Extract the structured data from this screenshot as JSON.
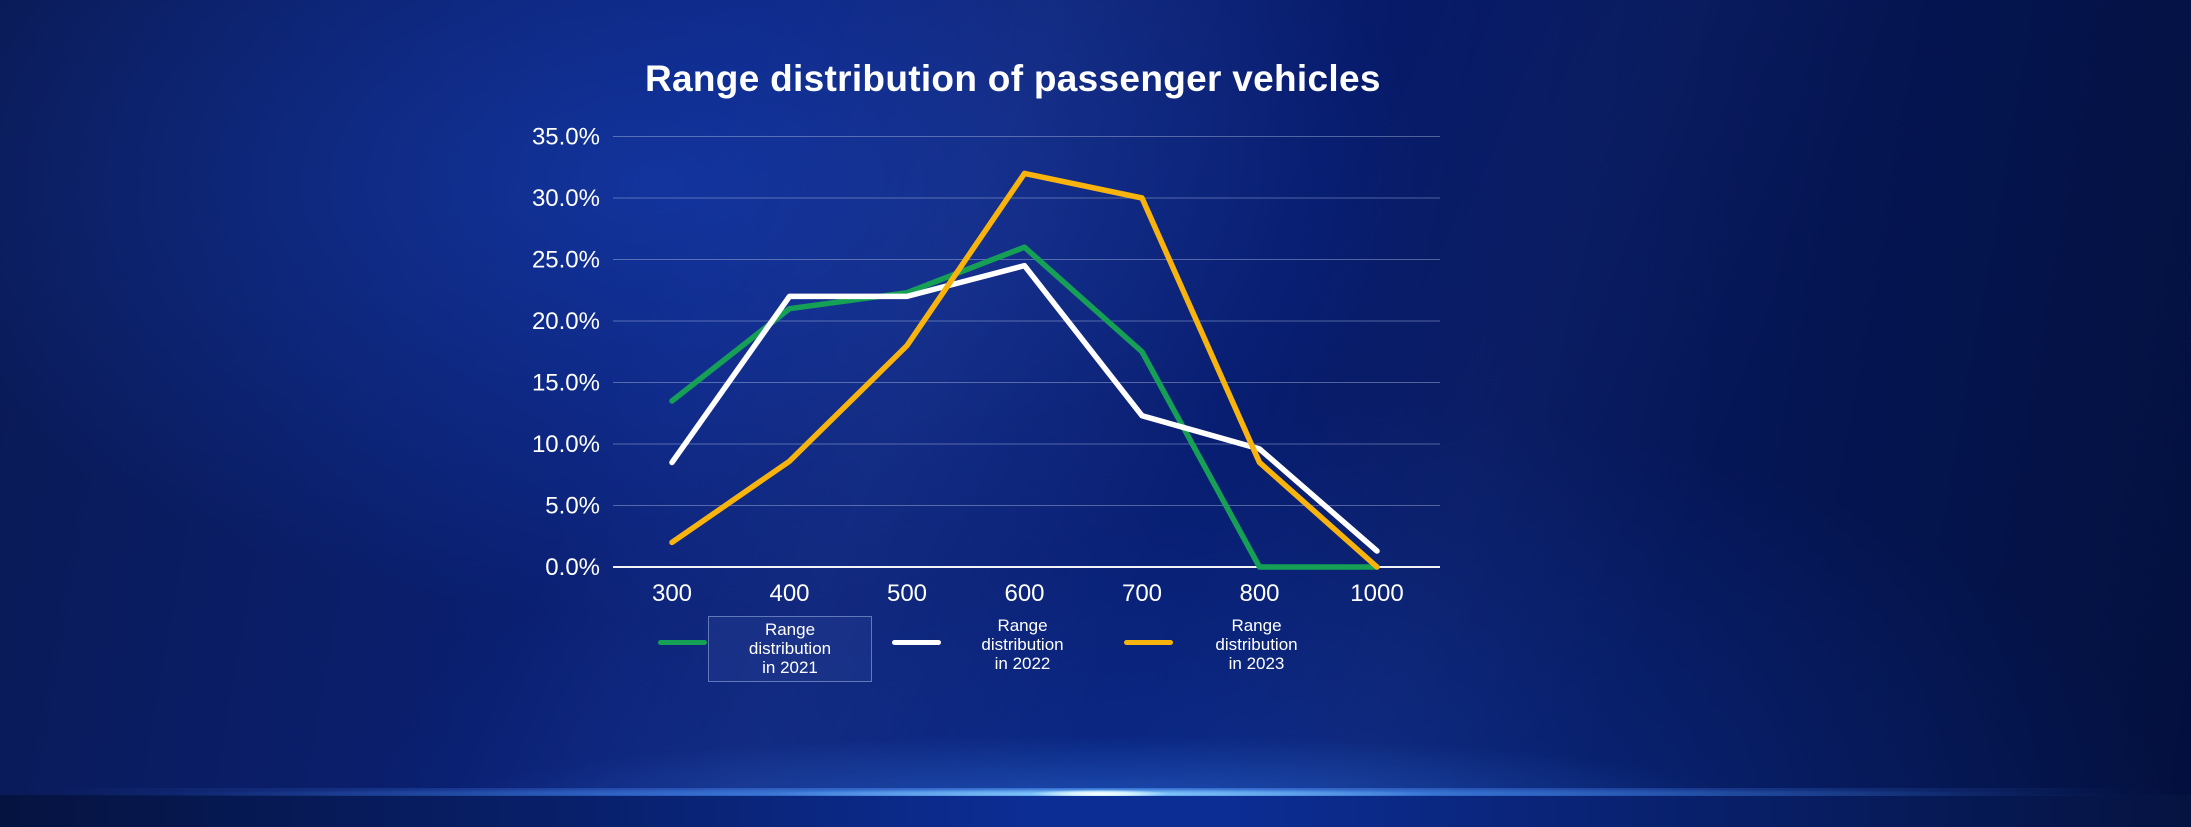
{
  "chart_data": {
    "type": "line",
    "title": "Range distribution of passenger vehicles",
    "categories": [
      "300",
      "400",
      "500",
      "600",
      "700",
      "800",
      "1000"
    ],
    "xlabel": "",
    "ylabel": "",
    "ylim": [
      0,
      35
    ],
    "grid": true,
    "legend_position": "bottom",
    "y_ticks_percent": [
      0,
      5,
      10,
      15,
      20,
      25,
      30,
      35
    ],
    "y_tick_labels": [
      "0.0%",
      "5.0%",
      "10.0%",
      "15.0%",
      "20.0%",
      "25.0%",
      "30.0%",
      "35.0%"
    ],
    "series": [
      {
        "name": "Range distribution in 2021",
        "legend_lines": [
          "Range",
          "distribution",
          "in 2021"
        ],
        "color": "#16A056",
        "values": [
          13.5,
          21.0,
          22.3,
          26.0,
          17.5,
          0.0,
          0.0
        ],
        "selected": true
      },
      {
        "name": "Range distribution in 2022",
        "legend_lines": [
          "Range",
          "distribution",
          "in 2022"
        ],
        "color": "#FFFFFF",
        "values": [
          8.5,
          22.0,
          22.0,
          24.5,
          12.3,
          9.6,
          1.3
        ],
        "selected": false
      },
      {
        "name": "Range distribution in 2023",
        "legend_lines": [
          "Range",
          "distribution",
          "in 2023"
        ],
        "color": "#F8B40D",
        "values": [
          2.0,
          8.6,
          18.0,
          32.0,
          30.0,
          8.5,
          0.0
        ],
        "selected": false
      }
    ],
    "colors": {
      "background_center": "#0A2076",
      "background_edge": "#03103E",
      "gridline": "rgba(190,205,235,0.40)",
      "axis_line": "rgba(255,255,255,0.95)",
      "text": "#FFFFFF"
    }
  }
}
